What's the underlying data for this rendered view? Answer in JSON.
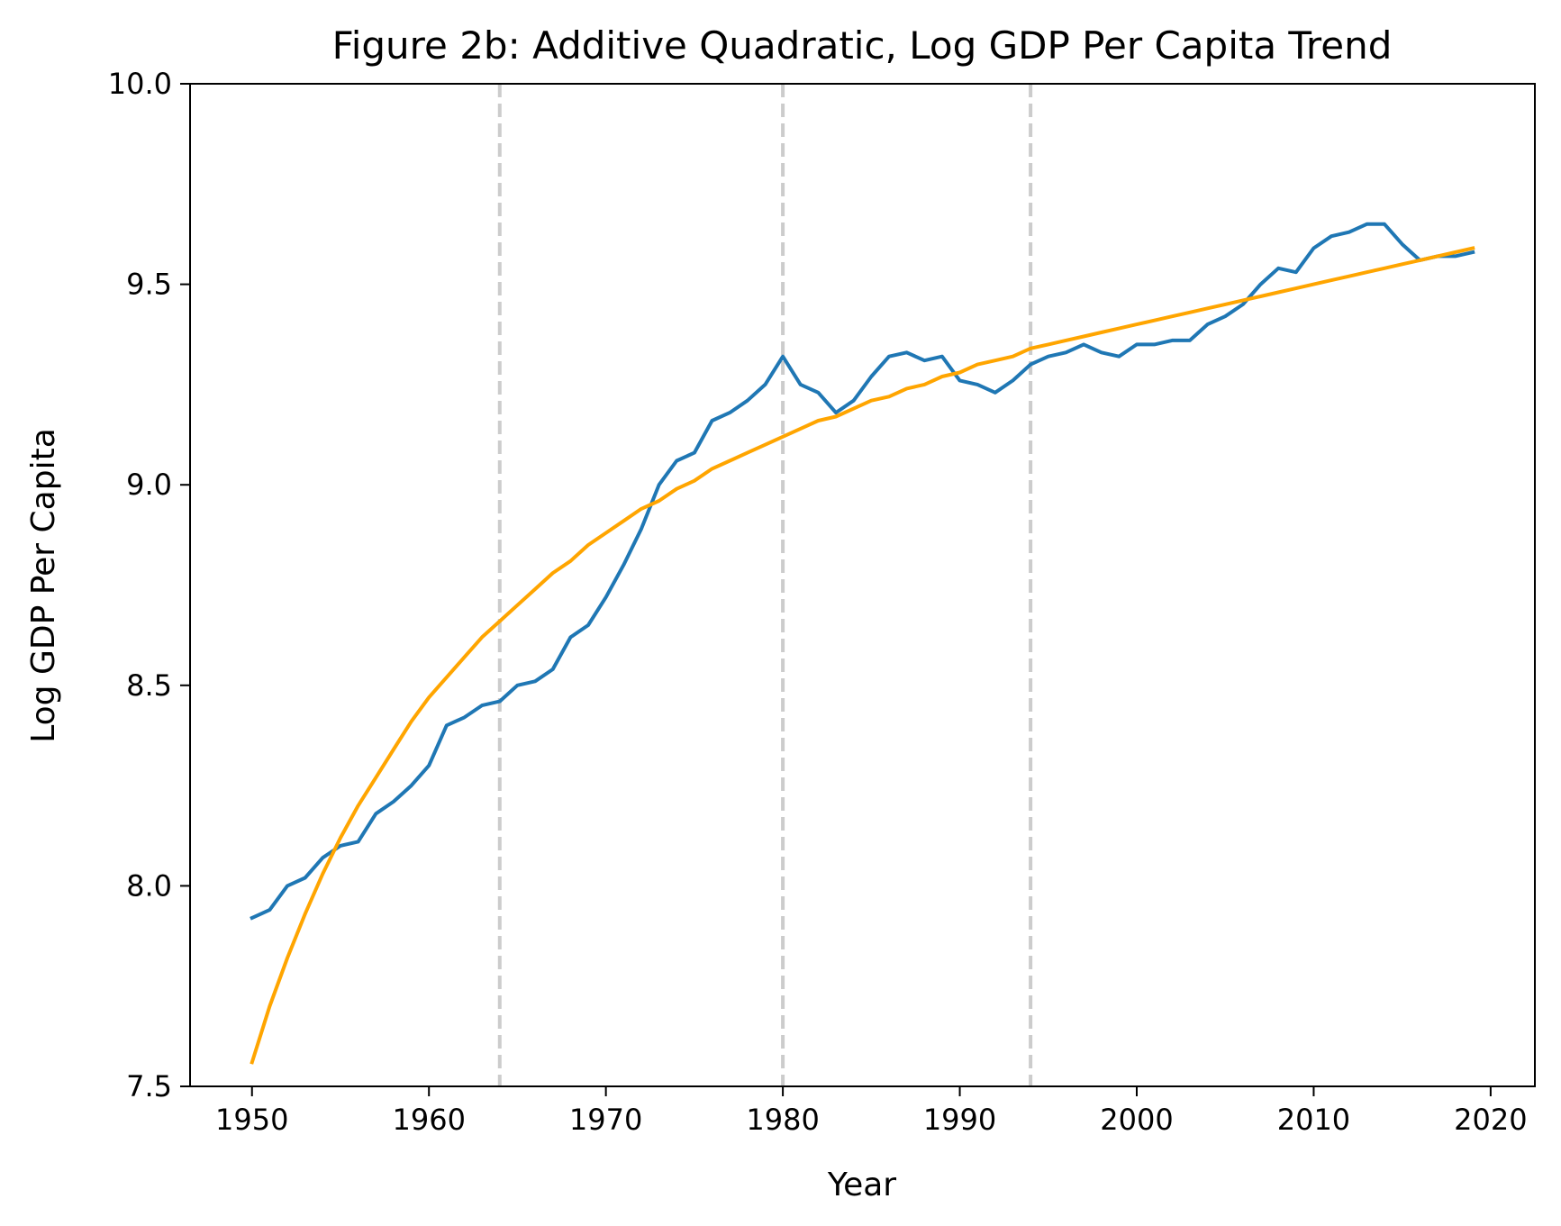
{
  "chart_data": {
    "type": "line",
    "title": "Figure 2b: Additive Quadratic, Log GDP Per Capita Trend",
    "xlabel": "Year",
    "ylabel": "Log GDP Per Capita",
    "xlim": [
      1946.5,
      2022.5
    ],
    "ylim": [
      7.5,
      10.0
    ],
    "xticks": [
      1950,
      1960,
      1970,
      1980,
      1990,
      2000,
      2010,
      2020
    ],
    "xtick_labels": [
      "1950",
      "1960",
      "1970",
      "1980",
      "1990",
      "2000",
      "2010",
      "2020"
    ],
    "yticks": [
      7.5,
      8.0,
      8.5,
      9.0,
      9.5,
      10.0
    ],
    "ytick_labels": [
      "7.5",
      "8.0",
      "8.5",
      "9.0",
      "9.5",
      "10.0"
    ],
    "grid": false,
    "legend": false,
    "vlines": [
      {
        "x": 1964,
        "color": "#cccccc",
        "style": "dashed"
      },
      {
        "x": 1980,
        "color": "#cccccc",
        "style": "dashed"
      },
      {
        "x": 1994,
        "color": "#cccccc",
        "style": "dashed"
      }
    ],
    "series": [
      {
        "color": "#1f77b4",
        "x": [
          1950,
          1951,
          1952,
          1953,
          1954,
          1955,
          1956,
          1957,
          1958,
          1959,
          1960,
          1961,
          1962,
          1963,
          1964,
          1965,
          1966,
          1967,
          1968,
          1969,
          1970,
          1971,
          1972,
          1973,
          1974,
          1975,
          1976,
          1977,
          1978,
          1979,
          1980,
          1981,
          1982,
          1983,
          1984,
          1985,
          1986,
          1987,
          1988,
          1989,
          1990,
          1991,
          1992,
          1993,
          1994,
          1995,
          1996,
          1997,
          1998,
          1999,
          2000,
          2001,
          2002,
          2003,
          2004,
          2005,
          2006,
          2007,
          2008,
          2009,
          2010,
          2011,
          2012,
          2013,
          2014,
          2015,
          2016,
          2017,
          2018,
          2019
        ],
        "y": [
          7.92,
          7.94,
          8.0,
          8.02,
          8.07,
          8.1,
          8.11,
          8.18,
          8.21,
          8.25,
          8.3,
          8.4,
          8.42,
          8.45,
          8.46,
          8.5,
          8.51,
          8.54,
          8.62,
          8.65,
          8.72,
          8.8,
          8.89,
          9.0,
          9.06,
          9.08,
          9.16,
          9.18,
          9.21,
          9.25,
          9.32,
          9.25,
          9.23,
          9.18,
          9.21,
          9.27,
          9.32,
          9.33,
          9.31,
          9.32,
          9.26,
          9.25,
          9.23,
          9.26,
          9.3,
          9.32,
          9.33,
          9.35,
          9.33,
          9.32,
          9.35,
          9.35,
          9.36,
          9.36,
          9.4,
          9.42,
          9.45,
          9.5,
          9.54,
          9.53,
          9.59,
          9.62,
          9.63,
          9.65,
          9.65,
          9.6,
          9.56,
          9.57,
          9.57,
          9.58
        ]
      },
      {
        "color": "#ffa500",
        "x": [
          1950,
          1951,
          1952,
          1953,
          1954,
          1955,
          1956,
          1957,
          1958,
          1959,
          1960,
          1961,
          1962,
          1963,
          1964,
          1965,
          1966,
          1967,
          1968,
          1969,
          1970,
          1971,
          1972,
          1973,
          1974,
          1975,
          1976,
          1977,
          1978,
          1979,
          1980,
          1981,
          1982,
          1983,
          1984,
          1985,
          1986,
          1987,
          1988,
          1989,
          1990,
          1991,
          1992,
          1993,
          1994,
          1995,
          1996,
          1997,
          1998,
          1999,
          2000,
          2001,
          2002,
          2003,
          2004,
          2005,
          2006,
          2007,
          2008,
          2009,
          2010,
          2011,
          2012,
          2013,
          2014,
          2015,
          2016,
          2017,
          2018,
          2019
        ],
        "y": [
          7.56,
          7.7,
          7.82,
          7.93,
          8.03,
          8.12,
          8.2,
          8.27,
          8.34,
          8.41,
          8.47,
          8.52,
          8.57,
          8.62,
          8.66,
          8.7,
          8.74,
          8.78,
          8.81,
          8.85,
          8.88,
          8.91,
          8.94,
          8.96,
          8.99,
          9.01,
          9.04,
          9.06,
          9.08,
          9.1,
          9.12,
          9.14,
          9.16,
          9.17,
          9.19,
          9.21,
          9.22,
          9.24,
          9.25,
          9.27,
          9.28,
          9.3,
          9.31,
          9.32,
          9.34,
          9.35,
          9.36,
          9.37,
          9.38,
          9.39,
          9.4,
          9.41,
          9.42,
          9.43,
          9.44,
          9.45,
          9.46,
          9.47,
          9.48,
          9.49,
          9.5,
          9.51,
          9.52,
          9.53,
          9.54,
          9.55,
          9.56,
          9.57,
          9.58,
          9.59
        ]
      }
    ]
  }
}
